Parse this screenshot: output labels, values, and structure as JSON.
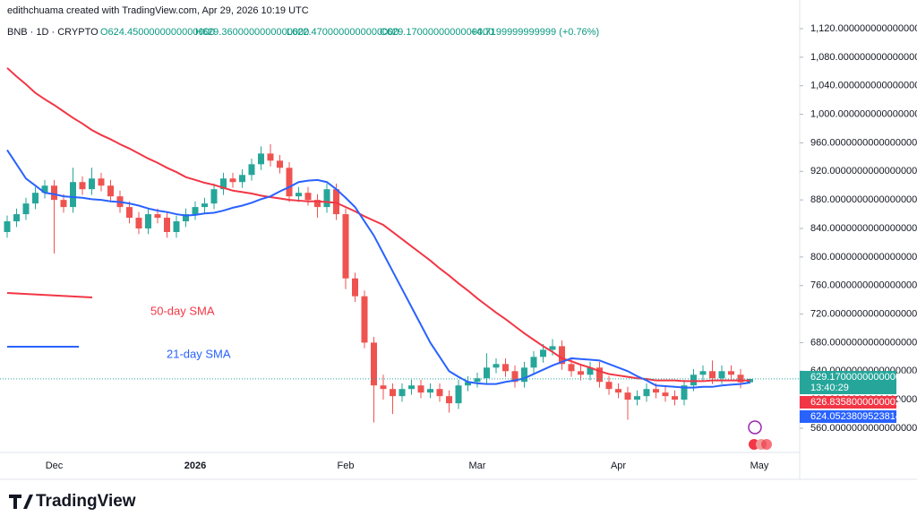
{
  "header": {
    "credit": "edithchuama created with TradingView.com, Apr 29, 2026 10:19 UTC",
    "symbol": "BNB · 1D · CRYPTO",
    "open": "O624.4500000000000000",
    "high": "H629.3600000000000000",
    "low": "L622.4700000000000000",
    "close": "C629.1700000000000000",
    "change": "+4.7199999999999 (+0.76%)"
  },
  "chart_data": {
    "type": "candlestick",
    "categories": [
      null,
      null,
      null,
      null,
      null,
      "Dec",
      null,
      null,
      null,
      null,
      null,
      null,
      null,
      null,
      null,
      null,
      null,
      null,
      null,
      null,
      "2026",
      null,
      null,
      null,
      null,
      null,
      null,
      null,
      null,
      null,
      null,
      null,
      null,
      null,
      null,
      null,
      "Feb",
      null,
      null,
      null,
      null,
      null,
      null,
      null,
      null,
      null,
      null,
      null,
      null,
      null,
      "Mar",
      null,
      null,
      null,
      null,
      null,
      null,
      null,
      null,
      null,
      null,
      null,
      null,
      null,
      null,
      "Apr",
      null,
      null,
      null,
      null,
      null,
      null,
      null,
      null,
      null,
      null,
      null,
      null,
      null,
      null,
      "May"
    ],
    "open": [
      835,
      850,
      860,
      875,
      890,
      900,
      880,
      870,
      905,
      895,
      910,
      900,
      885,
      870,
      855,
      840,
      860,
      855,
      835,
      850,
      860,
      870,
      875,
      895,
      910,
      905,
      915,
      930,
      945,
      935,
      925,
      885,
      890,
      880,
      870,
      895,
      860,
      770,
      745,
      680,
      620,
      615,
      605,
      615,
      620,
      610,
      615,
      605,
      595,
      620,
      625,
      630,
      645,
      650,
      640,
      625,
      645,
      660,
      670,
      675,
      650,
      640,
      635,
      645,
      625,
      615,
      610,
      600,
      605,
      615,
      610,
      605,
      600,
      620,
      635,
      640,
      630,
      640,
      635,
      624.45,
      null
    ],
    "high": [
      858,
      868,
      883,
      898,
      908,
      908,
      888,
      925,
      913,
      925,
      918,
      908,
      893,
      878,
      863,
      868,
      868,
      863,
      858,
      868,
      878,
      883,
      903,
      918,
      918,
      923,
      938,
      955,
      958,
      943,
      933,
      898,
      898,
      888,
      903,
      903,
      868,
      778,
      753,
      688,
      635,
      623,
      623,
      628,
      628,
      623,
      623,
      613,
      628,
      633,
      638,
      665,
      658,
      658,
      648,
      653,
      668,
      678,
      685,
      683,
      658,
      648,
      653,
      653,
      633,
      623,
      618,
      613,
      623,
      623,
      618,
      613,
      628,
      643,
      648,
      655,
      648,
      648,
      643,
      629.36,
      null
    ],
    "low": [
      827,
      842,
      852,
      867,
      882,
      805,
      862,
      862,
      887,
      887,
      892,
      877,
      862,
      847,
      832,
      832,
      847,
      827,
      827,
      842,
      852,
      862,
      867,
      887,
      897,
      897,
      907,
      922,
      927,
      917,
      877,
      877,
      872,
      855,
      862,
      852,
      755,
      737,
      672,
      568,
      600,
      580,
      597,
      607,
      602,
      602,
      597,
      582,
      587,
      612,
      617,
      622,
      637,
      632,
      617,
      617,
      637,
      652,
      662,
      642,
      632,
      627,
      627,
      617,
      607,
      602,
      572,
      592,
      597,
      602,
      597,
      592,
      592,
      612,
      627,
      622,
      622,
      627,
      616,
      622.47,
      null
    ],
    "close": [
      850,
      860,
      875,
      890,
      900,
      880,
      870,
      905,
      895,
      910,
      900,
      885,
      870,
      855,
      840,
      860,
      855,
      835,
      850,
      860,
      870,
      875,
      895,
      910,
      905,
      915,
      930,
      945,
      935,
      925,
      885,
      890,
      880,
      870,
      895,
      860,
      770,
      745,
      680,
      620,
      615,
      605,
      615,
      620,
      610,
      615,
      605,
      595,
      620,
      625,
      630,
      645,
      650,
      640,
      625,
      645,
      660,
      670,
      675,
      650,
      640,
      635,
      645,
      625,
      615,
      610,
      600,
      605,
      615,
      610,
      605,
      600,
      620,
      635,
      640,
      630,
      640,
      635,
      624.45,
      629.17,
      null
    ],
    "up_color": "#26a69a",
    "down_color": "#ef5350",
    "series": [
      {
        "name": "50-day SMA",
        "color": "#f23645",
        "values": [
          1065,
          1053,
          1042,
          1030,
          1021,
          1013,
          1004,
          995,
          987,
          978,
          971,
          965,
          958,
          952,
          945,
          938,
          932,
          925,
          919,
          912,
          908,
          904,
          901,
          897,
          893,
          891,
          889,
          886,
          884,
          882,
          880,
          879,
          878,
          878,
          877,
          876,
          870,
          864,
          857,
          851,
          845,
          835,
          825,
          815,
          805,
          795,
          784,
          774,
          763,
          753,
          742,
          732,
          722,
          713,
          703,
          693,
          684,
          675,
          667,
          658,
          654,
          649,
          645,
          640,
          636,
          634,
          632,
          630,
          629,
          627,
          627,
          627,
          626,
          626,
          626,
          627,
          627,
          627,
          627,
          626.8358000000002,
          null
        ]
      },
      {
        "name": "21-day SMA",
        "color": "#2962ff",
        "values": [
          950,
          930,
          910,
          900,
          890,
          888,
          885,
          884,
          883,
          881,
          880,
          878,
          877,
          875,
          872,
          868,
          865,
          863,
          860,
          858,
          859,
          861,
          862,
          865,
          869,
          872,
          876,
          881,
          885,
          892,
          898,
          905,
          907,
          908,
          905,
          895,
          883,
          870,
          850,
          830,
          805,
          780,
          755,
          730,
          705,
          680,
          660,
          640,
          632,
          625,
          623,
          622,
          622,
          625,
          627,
          630,
          636,
          642,
          648,
          653,
          658,
          657,
          656,
          655,
          650,
          645,
          640,
          633,
          627,
          620,
          619,
          618,
          617,
          617,
          618,
          618,
          620,
          621,
          622,
          624.0523809523814,
          null
        ]
      }
    ],
    "ylim": [
      560,
      1120
    ],
    "yticks": [
      {
        "value": 560,
        "label": "560.0000000000000000"
      },
      {
        "value": 600,
        "label": "600.0000000000000000"
      },
      {
        "value": 640,
        "label": "640.0000000000000000"
      },
      {
        "value": 680,
        "label": "680.0000000000000000"
      },
      {
        "value": 720,
        "label": "720.0000000000000000"
      },
      {
        "value": 760,
        "label": "760.0000000000000000"
      },
      {
        "value": 800,
        "label": "800.0000000000000000"
      },
      {
        "value": 840,
        "label": "840.0000000000000000"
      },
      {
        "value": 880,
        "label": "880.0000000000000000"
      },
      {
        "value": 920,
        "label": "920.0000000000000000"
      },
      {
        "value": 960,
        "label": "960.0000000000000000"
      },
      {
        "value": 1000,
        "label": "1,000.0000000000000000"
      },
      {
        "value": 1040,
        "label": "1,040.0000000000000000"
      },
      {
        "value": 1080,
        "label": "1,080.0000000000000000"
      },
      {
        "value": 1120,
        "label": "1,120.0000000000000000"
      }
    ],
    "grid": false,
    "price_tags": [
      {
        "label": "629.1700000000000000",
        "time": "13:40:29",
        "color": "#26a69a"
      },
      {
        "label": "626.8358000000002",
        "color": "#f23645"
      },
      {
        "label": "624.0523809523814",
        "color": "#2962ff"
      }
    ]
  },
  "brand": "TradingView"
}
